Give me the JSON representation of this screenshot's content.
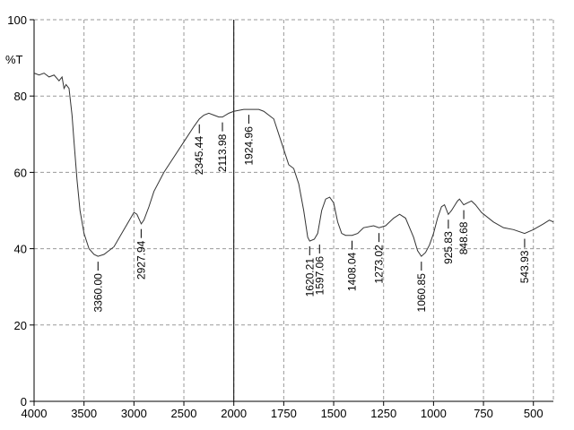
{
  "chart_data": {
    "type": "line",
    "ylabel": "%T",
    "xlim": [
      4000,
      400
    ],
    "x_break": 2000,
    "ylim": [
      0,
      100
    ],
    "xticks": [
      4000,
      3500,
      3000,
      2500,
      2000,
      1750,
      1500,
      1250,
      1000,
      750,
      500
    ],
    "yticks": [
      0,
      20,
      40,
      60,
      80,
      100
    ],
    "grid": true,
    "color": "#333333",
    "x": [
      4000,
      3950,
      3900,
      3850,
      3800,
      3750,
      3720,
      3700,
      3680,
      3650,
      3620,
      3600,
      3570,
      3540,
      3500,
      3450,
      3400,
      3360,
      3300,
      3200,
      3100,
      3000,
      2970,
      2927,
      2900,
      2850,
      2800,
      2700,
      2600,
      2500,
      2400,
      2345,
      2300,
      2250,
      2200,
      2150,
      2114,
      2050,
      2000,
      1950,
      1925,
      1875,
      1850,
      1800,
      1775,
      1750,
      1725,
      1700,
      1675,
      1650,
      1630,
      1620,
      1597,
      1580,
      1560,
      1540,
      1520,
      1500,
      1480,
      1460,
      1440,
      1408,
      1380,
      1350,
      1300,
      1273,
      1240,
      1200,
      1170,
      1140,
      1100,
      1080,
      1061,
      1040,
      1020,
      1000,
      980,
      960,
      945,
      926,
      910,
      880,
      870,
      849,
      830,
      810,
      790,
      760,
      700,
      650,
      600,
      544,
      500,
      450,
      420,
      400
    ],
    "values": [
      86,
      85.5,
      86,
      85,
      85.5,
      84,
      85,
      82,
      83,
      82,
      75,
      68,
      58,
      50,
      44,
      40,
      38.5,
      38,
      38.5,
      40.5,
      45,
      49.5,
      49,
      46.5,
      47.5,
      51,
      55,
      60,
      64,
      68,
      72,
      74,
      75,
      75.5,
      75,
      74.5,
      74.5,
      75.5,
      76,
      76.5,
      76.5,
      76.5,
      76,
      74,
      70,
      66,
      62,
      61,
      57,
      50,
      43,
      42,
      42.5,
      44,
      50,
      53,
      53.5,
      52,
      47,
      44,
      43.5,
      43.5,
      44,
      45.5,
      46,
      45.5,
      46,
      48,
      49,
      48,
      43,
      39.5,
      38,
      39,
      41,
      44,
      48,
      51,
      51.5,
      49,
      50,
      52.5,
      53,
      51.5,
      52,
      52.5,
      51.5,
      49.5,
      47,
      45.5,
      45,
      44,
      45,
      46.5,
      47.5,
      47
    ],
    "peaks": [
      {
        "value": 3360,
        "label": "3360.00"
      },
      {
        "value": 2927.94,
        "label": "2927.94"
      },
      {
        "value": 2345.44,
        "label": "2345.44"
      },
      {
        "value": 2113.98,
        "label": "2113.98"
      },
      {
        "value": 1924.96,
        "label": "1924.96"
      },
      {
        "value": 1620.21,
        "label": "1620.21"
      },
      {
        "value": 1597.06,
        "label": "1597.06"
      },
      {
        "value": 1408.04,
        "label": "1408.04"
      },
      {
        "value": 1273.02,
        "label": "1273.02"
      },
      {
        "value": 1060.85,
        "label": "1060.85"
      },
      {
        "value": 925.83,
        "label": "925.83"
      },
      {
        "value": 848.68,
        "label": "848.68"
      },
      {
        "value": 543.93,
        "label": "543.93"
      }
    ]
  }
}
